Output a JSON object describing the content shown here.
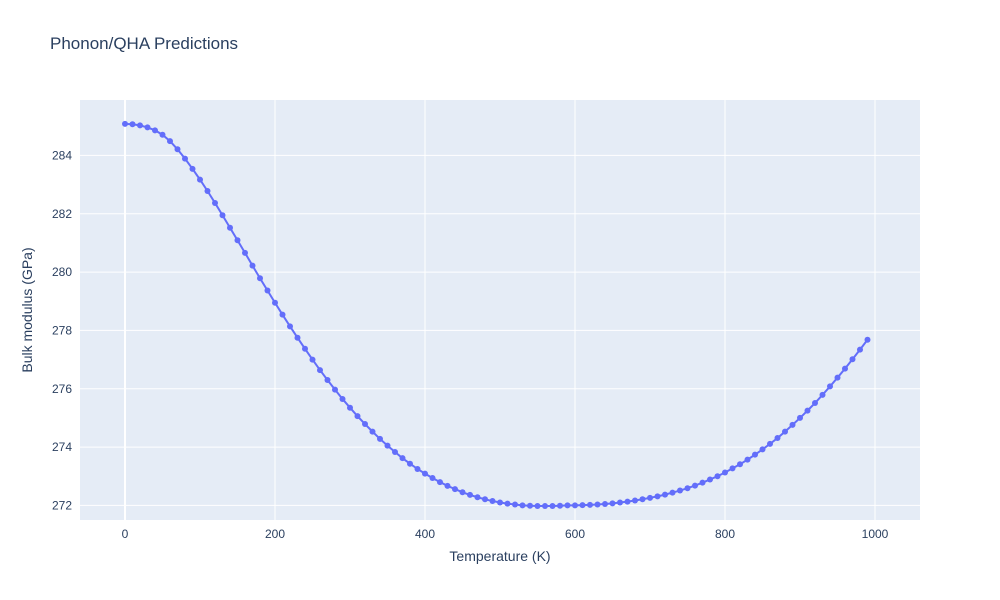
{
  "chart_data": {
    "type": "line",
    "title": "Phonon/QHA Predictions",
    "xlabel": "Temperature (K)",
    "ylabel": "Bulk modulus (GPa)",
    "xlim": [
      -60,
      1060
    ],
    "ylim": [
      271.5,
      285.9
    ],
    "x_ticks": [
      0,
      200,
      400,
      600,
      800,
      1000
    ],
    "y_ticks": [
      272,
      274,
      276,
      278,
      280,
      282,
      284
    ],
    "grid": true,
    "legend": "none",
    "series_color": "#636efa",
    "plot_bg": "#e5ecf6",
    "x": [
      0,
      10,
      20,
      30,
      40,
      50,
      60,
      70,
      80,
      90,
      100,
      110,
      120,
      130,
      140,
      150,
      160,
      170,
      180,
      190,
      200,
      210,
      220,
      230,
      240,
      250,
      260,
      270,
      280,
      290,
      300,
      310,
      320,
      330,
      340,
      350,
      360,
      370,
      380,
      390,
      400,
      410,
      420,
      430,
      440,
      450,
      460,
      470,
      480,
      490,
      500,
      510,
      520,
      530,
      540,
      550,
      560,
      570,
      580,
      590,
      600,
      610,
      620,
      630,
      640,
      650,
      660,
      670,
      680,
      690,
      700,
      710,
      720,
      730,
      740,
      750,
      760,
      770,
      780,
      790,
      800,
      810,
      820,
      830,
      840,
      850,
      860,
      870,
      880,
      890,
      900,
      910,
      920,
      930,
      940,
      950,
      960,
      970,
      980,
      990
    ],
    "y": [
      285.08,
      285.07,
      285.03,
      284.96,
      284.86,
      284.71,
      284.49,
      284.21,
      283.89,
      283.54,
      283.17,
      282.78,
      282.37,
      281.95,
      281.52,
      281.09,
      280.66,
      280.22,
      279.79,
      279.37,
      278.95,
      278.54,
      278.14,
      277.75,
      277.37,
      277.0,
      276.64,
      276.3,
      275.97,
      275.65,
      275.35,
      275.06,
      274.79,
      274.53,
      274.28,
      274.05,
      273.83,
      273.62,
      273.43,
      273.25,
      273.09,
      272.94,
      272.8,
      272.67,
      272.56,
      272.45,
      272.36,
      272.28,
      272.21,
      272.15,
      272.1,
      272.06,
      272.03,
      272.0,
      271.99,
      271.98,
      271.98,
      271.98,
      271.99,
      272.0,
      272.0,
      272.01,
      272.02,
      272.03,
      272.05,
      272.07,
      272.1,
      272.13,
      272.17,
      272.21,
      272.26,
      272.31,
      272.37,
      272.44,
      272.51,
      272.59,
      272.68,
      272.78,
      272.89,
      273.0,
      273.13,
      273.27,
      273.41,
      273.57,
      273.74,
      273.92,
      274.11,
      274.31,
      274.53,
      274.76,
      275.0,
      275.25,
      275.51,
      275.79,
      276.08,
      276.38,
      276.69,
      277.01,
      277.34,
      277.68
    ]
  }
}
